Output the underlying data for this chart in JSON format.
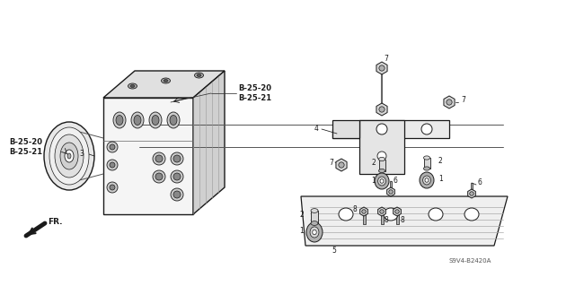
{
  "figsize": [
    6.4,
    3.19
  ],
  "dpi": 100,
  "background_color": "#ffffff",
  "labels": {
    "top_ref": "B-25-20\nB-25-21",
    "left_ref": "B-25-20\nB-25-21",
    "fr_label": "FR.",
    "diagram_id": "S9V4-B2420A"
  },
  "part_numbers": [
    "1",
    "1",
    "2",
    "2",
    "3",
    "4",
    "5",
    "6",
    "6",
    "7",
    "7",
    "7",
    "8",
    "8",
    "8"
  ],
  "line_color": "#1a1a1a",
  "gray_light": "#d8d8d8",
  "gray_mid": "#b0b0b0",
  "gray_dark": "#808080"
}
